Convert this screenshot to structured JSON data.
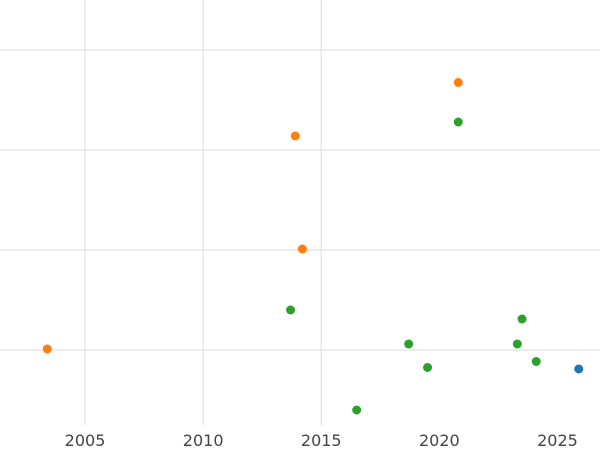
{
  "chart_data": {
    "type": "scatter",
    "title": "",
    "xlabel": "",
    "ylabel": "",
    "xlim": [
      2001.4,
      2026.8
    ],
    "ylim": [
      0,
      8.5
    ],
    "grid": true,
    "x_ticks": [
      2005,
      2010,
      2015,
      2020,
      2025
    ],
    "x_tick_labels": [
      "2005",
      "2010",
      "2015",
      "2020",
      "2025"
    ],
    "y_gridlines": [
      1.5,
      3.5,
      5.5,
      7.5
    ],
    "x_gridlines": [
      2005,
      2010,
      2015
    ],
    "colors": {
      "blue": "#1f77b4",
      "orange": "#ff7f0e",
      "green": "#2ca02c",
      "grid": "#e6e6e6",
      "tick_label": "#444444"
    },
    "series": [
      {
        "color": "#1f77b4",
        "points": [
          {
            "x": 2025.9,
            "y": 1.12
          }
        ]
      },
      {
        "color": "#ff7f0e",
        "points": [
          {
            "x": 2003.4,
            "y": 1.52
          },
          {
            "x": 2013.9,
            "y": 5.78
          },
          {
            "x": 2014.2,
            "y": 3.52
          },
          {
            "x": 2020.8,
            "y": 6.85
          }
        ]
      },
      {
        "color": "#2ca02c",
        "points": [
          {
            "x": 2013.7,
            "y": 2.3
          },
          {
            "x": 2016.5,
            "y": 0.3
          },
          {
            "x": 2018.7,
            "y": 1.62
          },
          {
            "x": 2019.5,
            "y": 1.15
          },
          {
            "x": 2020.8,
            "y": 6.06
          },
          {
            "x": 2023.3,
            "y": 1.62
          },
          {
            "x": 2023.5,
            "y": 2.12
          },
          {
            "x": 2024.1,
            "y": 1.27
          }
        ]
      }
    ]
  }
}
